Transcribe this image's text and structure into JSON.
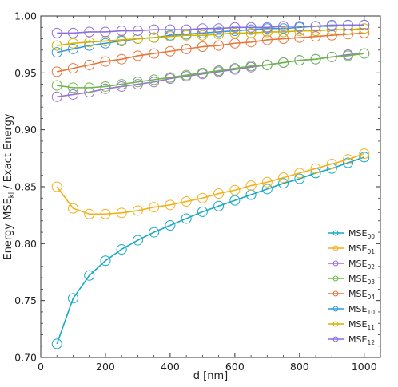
{
  "chart_data": {
    "type": "line",
    "xlabel": "d [nm]",
    "ylabel_parts": [
      "Energy MSE",
      "kl",
      " / Exact Energy"
    ],
    "xlim": [
      0,
      1050
    ],
    "ylim": [
      0.7,
      1.0
    ],
    "xticks": [
      0,
      200,
      400,
      600,
      800,
      1000
    ],
    "yticks": [
      0.7,
      0.75,
      0.8,
      0.85,
      0.9,
      0.95,
      1.0
    ],
    "xtick_labels": [
      "0",
      "200",
      "400",
      "600",
      "800",
      "1000"
    ],
    "ytick_labels": [
      "0.70",
      "0.75",
      "0.80",
      "0.85",
      "0.90",
      "0.95",
      "1.00"
    ],
    "grid": false,
    "legend_position": "bottom-right",
    "markers": "open-circle",
    "x": [
      50,
      100,
      150,
      200,
      250,
      300,
      350,
      400,
      450,
      500,
      550,
      600,
      650,
      700,
      750,
      800,
      850,
      900,
      950,
      1000
    ],
    "series": [
      {
        "name": "MSE",
        "sub": "00",
        "color": "#17a9c4",
        "values": [
          0.712,
          0.752,
          0.772,
          0.785,
          0.795,
          0.803,
          0.81,
          0.816,
          0.822,
          0.828,
          0.833,
          0.838,
          0.843,
          0.848,
          0.853,
          0.857,
          0.862,
          0.866,
          0.871,
          0.876
        ]
      },
      {
        "name": "MSE",
        "sub": "01",
        "color": "#f2b01e",
        "values": [
          0.85,
          0.831,
          0.826,
          0.826,
          0.827,
          0.829,
          0.832,
          0.834,
          0.837,
          0.84,
          0.844,
          0.847,
          0.851,
          0.854,
          0.858,
          0.862,
          0.866,
          0.87,
          0.874,
          0.879
        ]
      },
      {
        "name": "MSE",
        "sub": "02",
        "color": "#9b6fd8",
        "values": [
          0.929,
          0.931,
          0.933,
          0.936,
          0.938,
          0.94,
          0.942,
          0.945,
          0.947,
          0.949,
          0.951,
          0.953,
          0.955,
          0.957,
          0.959,
          0.961,
          0.962,
          0.964,
          0.966,
          0.967
        ]
      },
      {
        "name": "MSE",
        "sub": "03",
        "color": "#6db84a",
        "values": [
          0.939,
          0.937,
          0.937,
          0.938,
          0.94,
          0.942,
          0.944,
          0.946,
          0.948,
          0.95,
          0.952,
          0.954,
          0.956,
          0.957,
          0.959,
          0.961,
          0.962,
          0.964,
          0.965,
          0.967
        ]
      },
      {
        "name": "MSE",
        "sub": "04",
        "color": "#e8753a",
        "values": [
          0.951,
          0.954,
          0.957,
          0.96,
          0.962,
          0.965,
          0.967,
          0.969,
          0.971,
          0.973,
          0.974,
          0.976,
          0.977,
          0.979,
          0.98,
          0.981,
          0.982,
          0.983,
          0.984,
          0.985
        ]
      },
      {
        "name": "MSE",
        "sub": "10",
        "color": "#3399dd",
        "values": [
          0.968,
          0.971,
          0.974,
          0.976,
          0.978,
          0.98,
          0.981,
          0.983,
          0.984,
          0.985,
          0.986,
          0.987,
          0.988,
          0.989,
          0.989,
          0.99,
          0.991,
          0.991,
          0.992,
          0.992
        ]
      },
      {
        "name": "MSE",
        "sub": "11",
        "color": "#d1b200",
        "values": [
          0.974,
          0.976,
          0.977,
          0.978,
          0.979,
          0.98,
          0.981,
          0.982,
          0.983,
          0.983,
          0.984,
          0.985,
          0.985,
          0.986,
          0.986,
          0.987,
          0.987,
          0.988,
          0.988,
          0.989
        ]
      },
      {
        "name": "MSE",
        "sub": "12",
        "color": "#8a6fe0",
        "values": [
          0.985,
          0.985,
          0.986,
          0.986,
          0.987,
          0.987,
          0.988,
          0.988,
          0.988,
          0.989,
          0.989,
          0.99,
          0.99,
          0.99,
          0.991,
          0.991,
          0.991,
          0.992,
          0.992,
          0.992
        ]
      }
    ]
  }
}
